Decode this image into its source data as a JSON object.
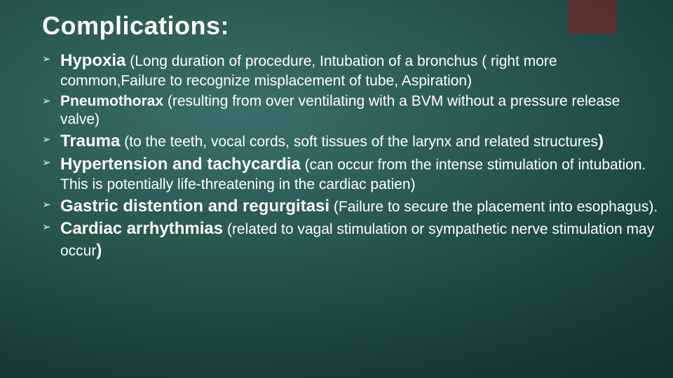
{
  "title": "Complications:",
  "background": {
    "gradient_center": "#3b6f6b",
    "gradient_mid": "#27544f",
    "gradient_outer": "#153b3a",
    "gradient_edge": "#0c2627"
  },
  "accent_tab_color": "#8a1d1d",
  "text_color": "#ffffff",
  "title_fontsize": 36,
  "term_fontsize": 24,
  "detail_fontsize": 21,
  "bullet_glyph": "➢",
  "items": [
    {
      "term": "Hypoxia",
      "detail_lead": " (",
      "detail": "Long duration of procedure, Intubation of a bronchus ( right more common,Failure to recognize misplacement of tube, Aspiration)"
    },
    {
      "term": "Pneumothorax",
      "term_class": "md",
      "detail_lead": " ",
      "detail": "(resulting from over ventilating with a BVM without a pressure release valve)"
    },
    {
      "term": "Trauma",
      "detail_lead": " (",
      "detail": "to the teeth, vocal cords, soft tissues of the larynx and related structures",
      "detail_trail": ")"
    },
    {
      "term": "Hypertension and tachycardia",
      "detail_lead": " (",
      "detail": "can occur from the intense stimulation of intubation.  This is potentially life-threatening in the cardiac patien)"
    },
    {
      "term": "Gastric distention and regurgitasi",
      "detail_lead": " ",
      "detail": "(Failure to secure the placement into esophagus)."
    },
    {
      "term": "Cardiac arrhythmias",
      "detail_lead": " (",
      "detail": "related to vagal stimulation or sympathetic nerve stimulation may occur",
      "detail_trail": ")"
    }
  ]
}
